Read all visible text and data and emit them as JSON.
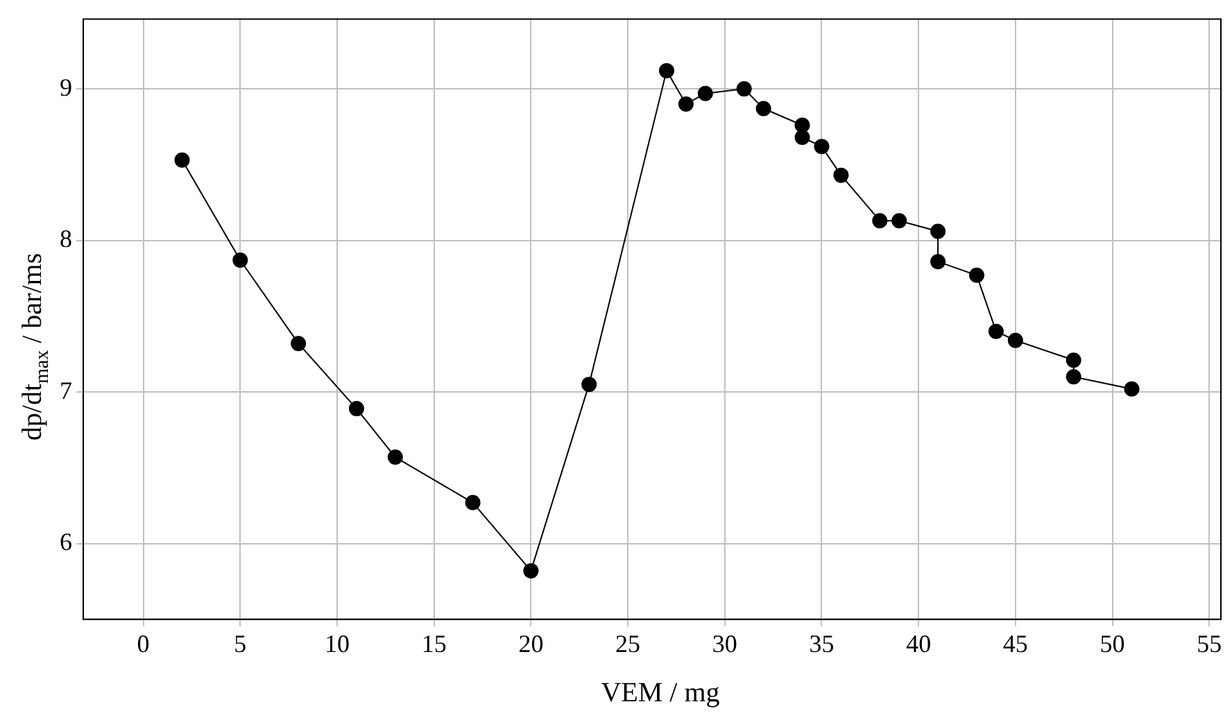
{
  "chart_data": {
    "type": "line",
    "xlabel": "VEM / mg",
    "ylabel": "dp/dt$_{max}$ /  bar/ms",
    "series": [
      {
        "color": "#000000",
        "x": [
          2,
          5,
          8,
          11,
          13,
          17,
          20,
          23,
          27,
          28,
          29,
          31,
          32,
          34,
          34,
          35,
          36,
          38,
          39,
          41,
          41,
          43,
          44,
          45,
          48,
          48,
          51
        ],
        "values": [
          8.53,
          7.87,
          7.32,
          6.89,
          6.57,
          6.27,
          5.82,
          7.05,
          9.12,
          8.9,
          8.97,
          9.0,
          8.87,
          8.76,
          8.68,
          8.62,
          8.43,
          8.13,
          8.13,
          8.06,
          7.86,
          7.77,
          7.4,
          7.34,
          7.21,
          7.1,
          7.02
        ]
      }
    ],
    "xlim": [
      -3.1,
      55.6
    ],
    "xticks": [
      0,
      5,
      10,
      15,
      20,
      25,
      30,
      35,
      40,
      45,
      50,
      55
    ],
    "ylim": [
      5.5,
      9.46
    ],
    "yticks": [
      6,
      7,
      8,
      9
    ],
    "grid": true,
    "legend": false,
    "marker": "circle",
    "line_style": "solid"
  }
}
